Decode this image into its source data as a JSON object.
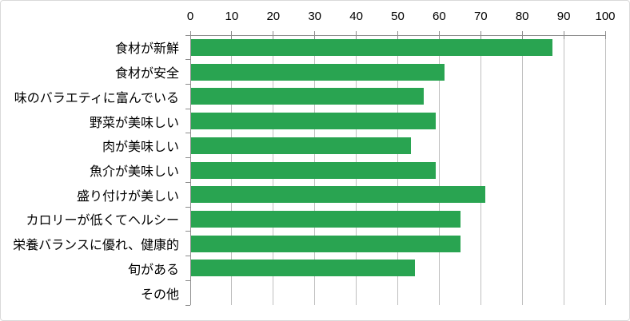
{
  "chart_data": {
    "type": "bar",
    "orientation": "horizontal",
    "title": "",
    "xlabel": "",
    "ylabel": "",
    "categories": [
      "食材が新鮮",
      "食材が安全",
      "味のバラエティに富んでいる",
      "野菜が美味しい",
      "肉が美味しい",
      "魚介が美味しい",
      "盛り付けが美しい",
      "カロリーが低くてヘルシー",
      "栄養バランスに優れ、健康的",
      "旬がある",
      "その他"
    ],
    "values": [
      87,
      61,
      56,
      59,
      53,
      59,
      71,
      65,
      65,
      54,
      0
    ],
    "xlim": [
      0,
      100
    ],
    "xticks": [
      0,
      10,
      20,
      30,
      40,
      50,
      60,
      70,
      80,
      90,
      100
    ],
    "x_axis_position": "top",
    "grid": true,
    "legend": null,
    "colors": {
      "bar": "#29a451",
      "gridline": "#bfbfbf",
      "axis": "#8c8c8c",
      "text": "#000000",
      "frame_border": "#d9d9d9",
      "background": "#ffffff"
    }
  }
}
